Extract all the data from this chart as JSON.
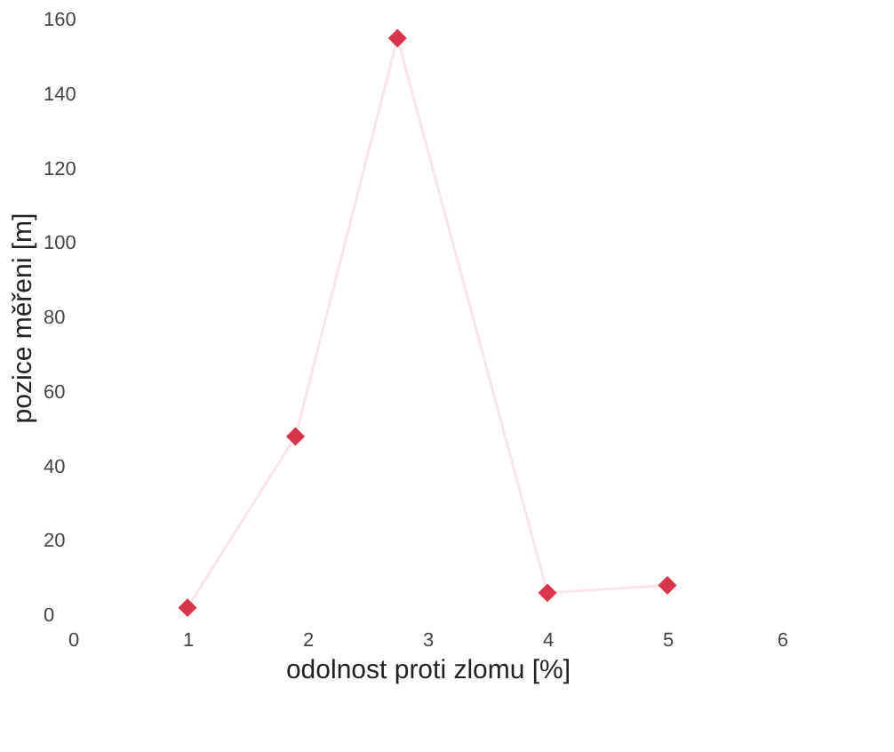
{
  "chart_data": {
    "type": "line",
    "xlabel": "odolnost proti zlomu [%]",
    "ylabel": "pozice měřeni [m]",
    "xlim": [
      0,
      6
    ],
    "xticks": [
      0,
      1,
      2,
      3,
      4,
      5,
      6
    ],
    "ylim": [
      0,
      160
    ],
    "yticks": [
      0,
      20,
      40,
      60,
      80,
      100,
      120,
      140,
      160
    ],
    "grid": false,
    "marker": "diamond",
    "series": [
      {
        "color": "#d9344a",
        "x": [
          1,
          1.9,
          2.75,
          4,
          5
        ],
        "values": [
          2,
          48,
          155,
          6,
          8
        ]
      }
    ]
  }
}
